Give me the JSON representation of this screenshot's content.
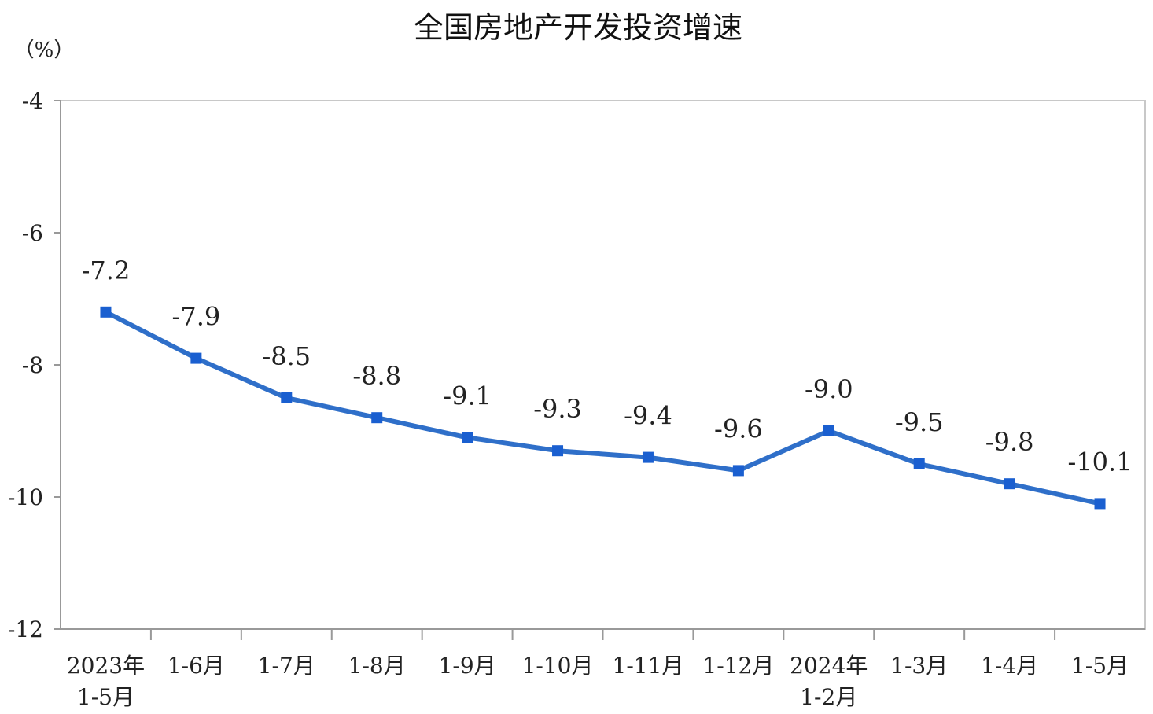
{
  "chart_data": {
    "type": "line",
    "title": "全国房地产开发投资增速",
    "unit_label": "（%）",
    "categories": [
      [
        "2023年",
        "1-5月"
      ],
      [
        "1-6月"
      ],
      [
        "1-7月"
      ],
      [
        "1-8月"
      ],
      [
        "1-9月"
      ],
      [
        "1-10月"
      ],
      [
        "1-11月"
      ],
      [
        "1-12月"
      ],
      [
        "2024年",
        "1-2月"
      ],
      [
        "1-3月"
      ],
      [
        "1-4月"
      ],
      [
        "1-5月"
      ]
    ],
    "series": [
      {
        "values": [
          -7.2,
          -7.9,
          -8.5,
          -8.8,
          -9.1,
          -9.3,
          -9.4,
          -9.6,
          -9.0,
          -9.5,
          -9.8,
          -10.1
        ],
        "data_labels": [
          "-7.2",
          "-7.9",
          "-8.5",
          "-8.8",
          "-9.1",
          "-9.3",
          "-9.4",
          "-9.6",
          "-9.0",
          "-9.5",
          "-9.8",
          "-10.1"
        ]
      }
    ],
    "ylim": [
      -12,
      -4
    ],
    "yticks": [
      -4,
      -6,
      -8,
      -10,
      -12
    ],
    "ytick_labels": [
      "-4",
      "-6",
      "-8",
      "-10",
      "-12"
    ],
    "grid": false,
    "legend": "none",
    "colors": {
      "line": "#2f6fc9",
      "marker": "#1a5fd0",
      "axis": "#999999",
      "frame": "#c8c8c8"
    }
  }
}
